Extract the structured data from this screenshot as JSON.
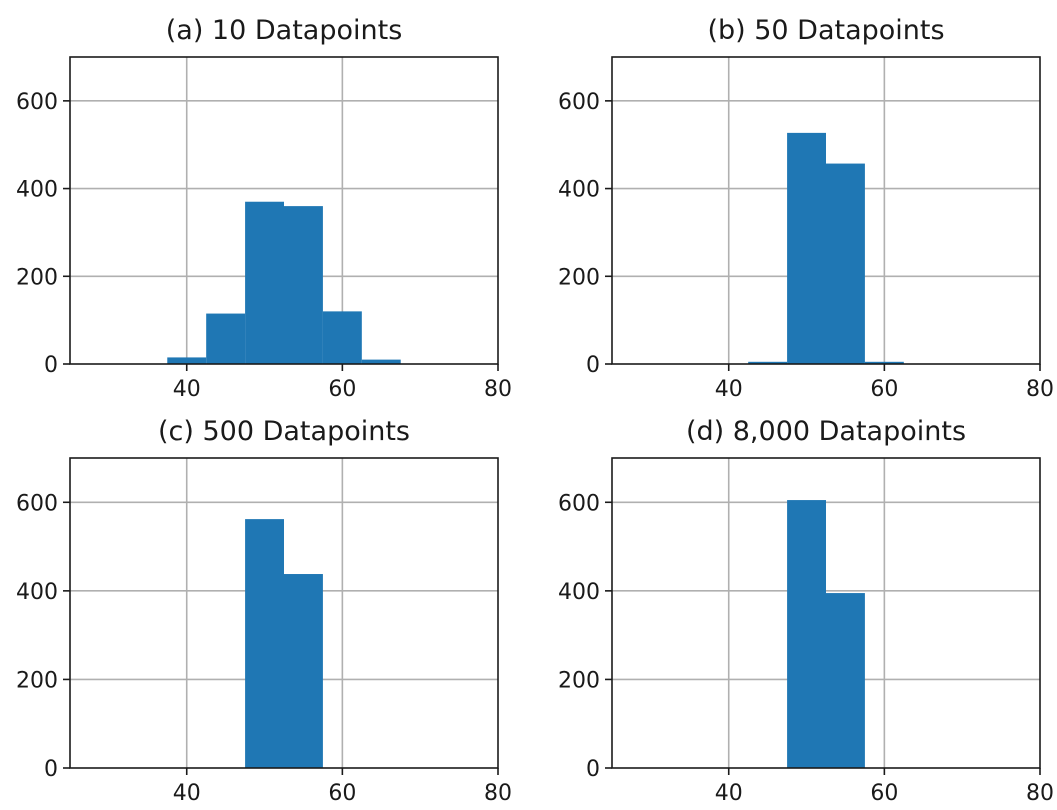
{
  "chart_data": [
    {
      "type": "bar",
      "title": "(a) 10 Datapoints",
      "xlabel": "",
      "ylabel": "",
      "xlim": [
        25,
        80
      ],
      "ylim": [
        0,
        700
      ],
      "xticks": [
        40,
        60,
        80
      ],
      "yticks": [
        0,
        200,
        400,
        600
      ],
      "grid": true,
      "bin_edges": [
        37.5,
        42.5,
        47.5,
        52.5,
        57.5,
        62.5,
        67.5
      ],
      "values": [
        15,
        115,
        370,
        360,
        120,
        10
      ],
      "color": "#1f77b4"
    },
    {
      "type": "bar",
      "title": "(b) 50 Datapoints",
      "xlabel": "",
      "ylabel": "",
      "xlim": [
        25,
        80
      ],
      "ylim": [
        0,
        700
      ],
      "xticks": [
        40,
        60,
        80
      ],
      "yticks": [
        0,
        200,
        400,
        600
      ],
      "grid": true,
      "bin_edges": [
        42.5,
        47.5,
        52.5,
        57.5,
        62.5
      ],
      "values": [
        5,
        527,
        457,
        5
      ],
      "color": "#1f77b4"
    },
    {
      "type": "bar",
      "title": "(c) 500 Datapoints",
      "xlabel": "",
      "ylabel": "",
      "xlim": [
        25,
        80
      ],
      "ylim": [
        0,
        700
      ],
      "xticks": [
        40,
        60,
        80
      ],
      "yticks": [
        0,
        200,
        400,
        600
      ],
      "grid": true,
      "bin_edges": [
        47.5,
        52.5,
        57.5
      ],
      "values": [
        562,
        438
      ],
      "color": "#1f77b4"
    },
    {
      "type": "bar",
      "title": "(d) 8,000 Datapoints",
      "xlabel": "",
      "ylabel": "",
      "xlim": [
        25,
        80
      ],
      "ylim": [
        0,
        700
      ],
      "xticks": [
        40,
        60,
        80
      ],
      "yticks": [
        0,
        200,
        400,
        600
      ],
      "grid": true,
      "bin_edges": [
        47.5,
        52.5,
        57.5
      ],
      "values": [
        605,
        395
      ],
      "color": "#1f77b4"
    }
  ]
}
